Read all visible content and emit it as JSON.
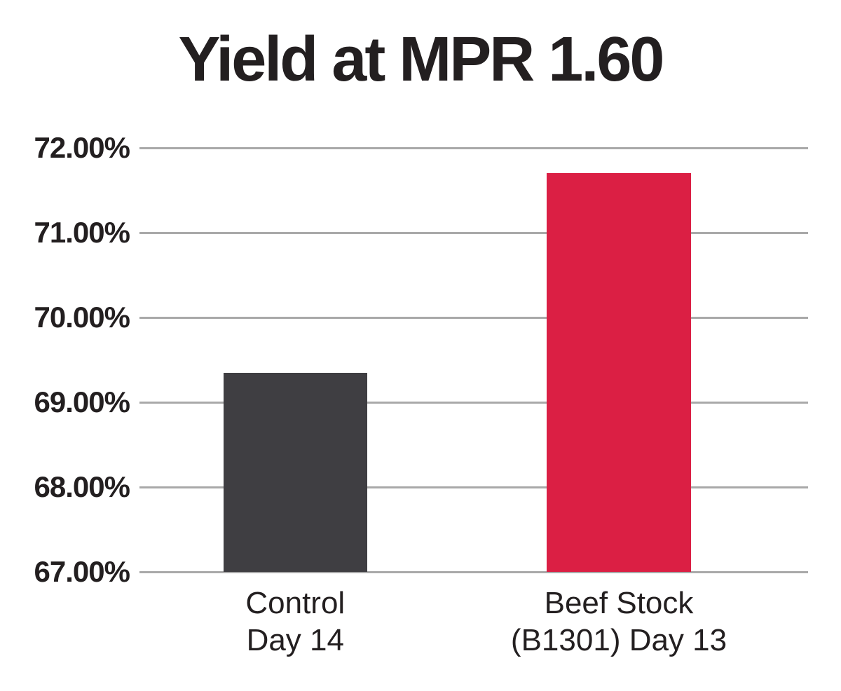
{
  "chart_data": {
    "type": "bar",
    "title": "Yield at MPR 1.60",
    "categories": [
      [
        "Control",
        "Day 14"
      ],
      [
        "Beef Stock",
        "(B1301) Day 13"
      ]
    ],
    "values": [
      69.35,
      71.7
    ],
    "ylim": [
      67,
      72
    ],
    "yticks": [
      {
        "value": 72,
        "label": "72.00%"
      },
      {
        "value": 71,
        "label": "71.00%"
      },
      {
        "value": 70,
        "label": "70.00%"
      },
      {
        "value": 69,
        "label": "69.00%"
      },
      {
        "value": 68,
        "label": "68.00%"
      },
      {
        "value": 67,
        "label": "67.00%"
      }
    ],
    "xlabel": "",
    "ylabel": "",
    "grid": true,
    "legend_position": "none",
    "bar_colors": [
      "#3F3E42",
      "#DB1F44"
    ],
    "layout": {
      "bar_centers_frac": [
        0.233,
        0.717
      ],
      "bar_width_frac": 0.215
    }
  },
  "colors": {
    "title_text": "#231F20",
    "axis_text": "#231F20",
    "gridline": "#A9A9A9",
    "background": "#FFFFFF"
  }
}
